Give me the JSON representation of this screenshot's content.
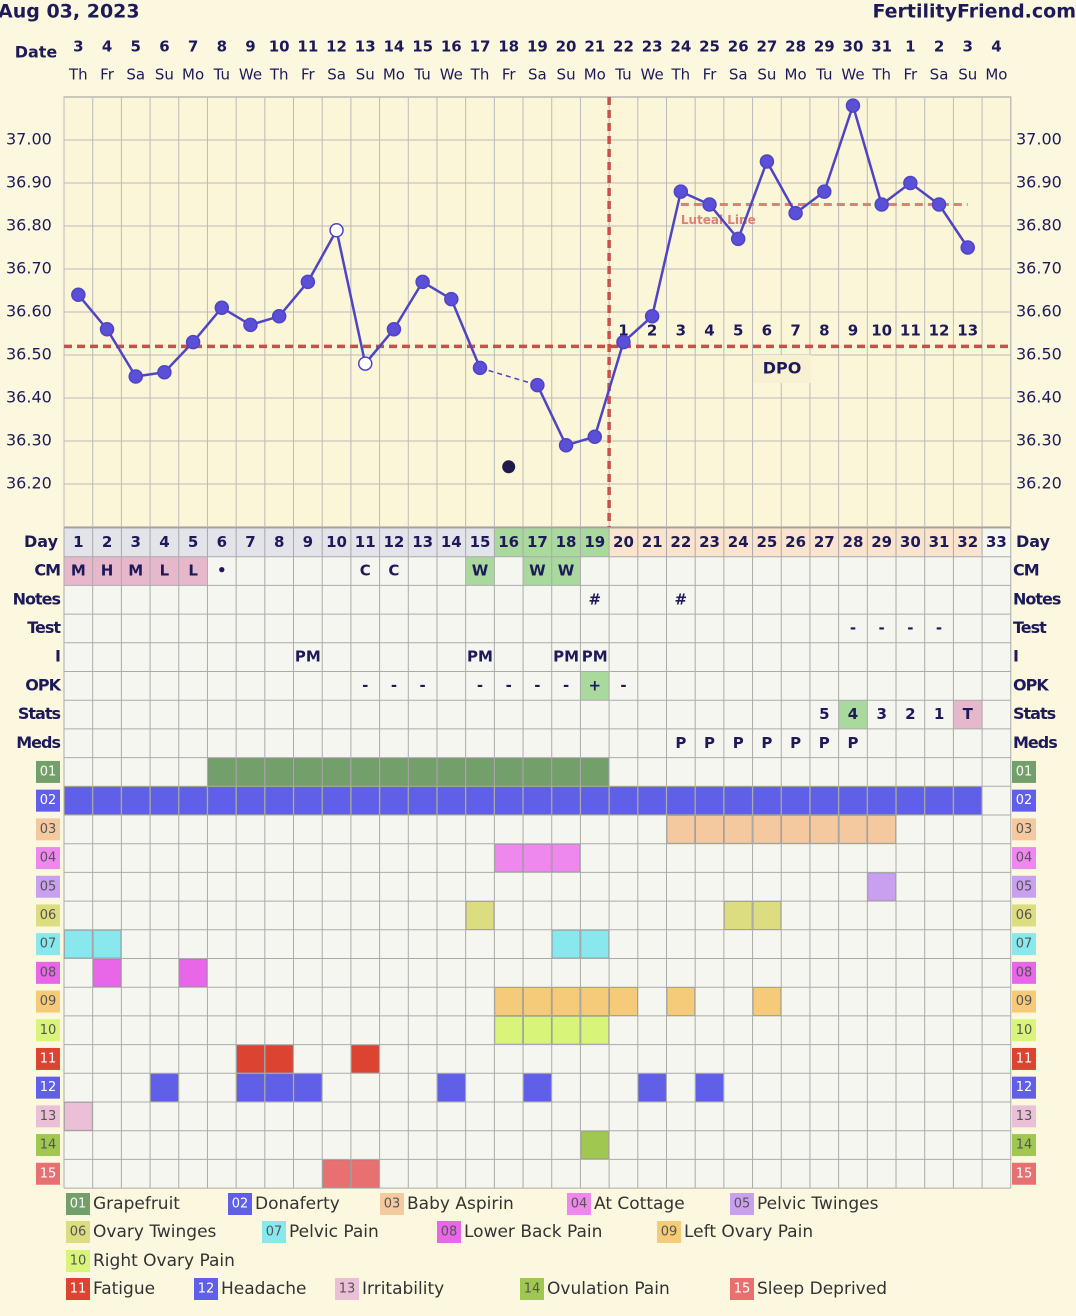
{
  "header": {
    "date": "Aug 03, 2023",
    "site": "FertilityFriend.com"
  },
  "chart_data": {
    "type": "line",
    "date_label": "Date",
    "dates": [
      "3",
      "4",
      "5",
      "6",
      "7",
      "8",
      "9",
      "10",
      "11",
      "12",
      "13",
      "14",
      "15",
      "16",
      "17",
      "18",
      "19",
      "20",
      "21",
      "22",
      "23",
      "24",
      "25",
      "26",
      "27",
      "28",
      "29",
      "30",
      "31",
      "1",
      "2",
      "3",
      "4"
    ],
    "weekdays": [
      "Th",
      "Fr",
      "Sa",
      "Su",
      "Mo",
      "Tu",
      "We",
      "Th",
      "Fr",
      "Sa",
      "Su",
      "Mo",
      "Tu",
      "We",
      "Th",
      "Fr",
      "Sa",
      "Su",
      "Mo",
      "Tu",
      "We",
      "Th",
      "Fr",
      "Sa",
      "Su",
      "Mo",
      "Tu",
      "We",
      "Th",
      "Fr",
      "Sa",
      "Su",
      "Mo"
    ],
    "day_label": "Day",
    "days": [
      1,
      2,
      3,
      4,
      5,
      6,
      7,
      8,
      9,
      10,
      11,
      12,
      13,
      14,
      15,
      16,
      17,
      18,
      19,
      20,
      21,
      22,
      23,
      24,
      25,
      26,
      27,
      28,
      29,
      30,
      31,
      32,
      33
    ],
    "values": [
      36.64,
      36.56,
      36.45,
      36.46,
      36.53,
      36.61,
      36.57,
      36.59,
      36.67,
      36.79,
      36.48,
      36.56,
      36.67,
      36.63,
      36.47,
      null,
      36.43,
      36.29,
      36.31,
      36.53,
      36.59,
      36.88,
      36.85,
      36.77,
      36.95,
      36.83,
      36.88,
      37.08,
      36.85,
      36.9,
      36.85,
      36.75,
      null
    ],
    "color": "#4f45c4",
    "hollow_days": [
      10,
      11
    ],
    "discarded": [
      null,
      null,
      null,
      null,
      null,
      null,
      null,
      null,
      null,
      null,
      null,
      null,
      null,
      null,
      null,
      36.24,
      null,
      null,
      null,
      null,
      null,
      null,
      null,
      null,
      null,
      null,
      null,
      null,
      null,
      null,
      null,
      null,
      null
    ],
    "ylim": [
      36.1,
      37.1
    ],
    "yticks": [
      {
        "value": 36.2,
        "label": "36.20"
      },
      {
        "value": 36.3,
        "label": "36.30"
      },
      {
        "value": 36.4,
        "label": "36.40"
      },
      {
        "value": 36.5,
        "label": "36.50"
      },
      {
        "value": 36.6,
        "label": "36.60"
      },
      {
        "value": 36.7,
        "label": "36.70"
      },
      {
        "value": 36.8,
        "label": "36.80"
      },
      {
        "value": 36.9,
        "label": "36.90"
      },
      {
        "value": 37,
        "label": "37.00"
      }
    ],
    "grid": true,
    "coverline": 36.52,
    "ovulation_day": 19,
    "luteal_line": {
      "label": "Luteal Line",
      "value": 36.85,
      "days": [
        22,
        32
      ]
    },
    "dpo_label": "DPO",
    "dpo": [
      null,
      null,
      null,
      null,
      null,
      null,
      null,
      null,
      null,
      null,
      null,
      null,
      null,
      null,
      null,
      null,
      null,
      null,
      null,
      1,
      2,
      3,
      4,
      5,
      6,
      7,
      8,
      9,
      10,
      11,
      12,
      13,
      null
    ],
    "phases": [
      {
        "from": 1,
        "to": 15,
        "color": "#e3e3ea"
      },
      {
        "from": 16,
        "to": 19,
        "color": "#a9d99c"
      },
      {
        "from": 20,
        "to": 32,
        "color": "#fbe4cd"
      }
    ]
  },
  "rows": [
    {
      "label": "CM",
      "cells": [
        {
          "day": 1,
          "text": "M",
          "color": "#e7b8cc"
        },
        {
          "day": 2,
          "text": "H",
          "color": "#e7b8cc"
        },
        {
          "day": 3,
          "text": "M",
          "color": "#e7b8cc"
        },
        {
          "day": 4,
          "text": "L",
          "color": "#e7b8cc"
        },
        {
          "day": 5,
          "text": "L",
          "color": "#e7b8cc"
        },
        {
          "day": 6,
          "text": "•"
        },
        {
          "day": 11,
          "text": "C"
        },
        {
          "day": 12,
          "text": "C"
        },
        {
          "day": 15,
          "text": "W",
          "color": "#a9d99c"
        },
        {
          "day": 17,
          "text": "W",
          "color": "#a9d99c"
        },
        {
          "day": 18,
          "text": "W",
          "color": "#a9d99c"
        }
      ]
    },
    {
      "label": "Notes",
      "cells": [
        {
          "day": 19,
          "text": "#"
        },
        {
          "day": 22,
          "text": "#"
        }
      ]
    },
    {
      "label": "Test",
      "cells": [
        {
          "day": 28,
          "text": "-"
        },
        {
          "day": 29,
          "text": "-"
        },
        {
          "day": 30,
          "text": "-"
        },
        {
          "day": 31,
          "text": "-"
        }
      ]
    },
    {
      "label": "I",
      "cells": [
        {
          "day": 9,
          "text": "PM"
        },
        {
          "day": 15,
          "text": "PM"
        },
        {
          "day": 18,
          "text": "PM"
        },
        {
          "day": 19,
          "text": "PM"
        }
      ]
    },
    {
      "label": "OPK",
      "cells": [
        {
          "day": 11,
          "text": "-"
        },
        {
          "day": 12,
          "text": "-"
        },
        {
          "day": 13,
          "text": "-"
        },
        {
          "day": 15,
          "text": "-"
        },
        {
          "day": 16,
          "text": "-"
        },
        {
          "day": 17,
          "text": "-"
        },
        {
          "day": 18,
          "text": "-"
        },
        {
          "day": 19,
          "text": "+",
          "color": "#a9d99c"
        },
        {
          "day": 20,
          "text": "-"
        }
      ]
    },
    {
      "label": "Stats",
      "cells": [
        {
          "day": 27,
          "text": "5"
        },
        {
          "day": 28,
          "text": "4",
          "color": "#a9d99c"
        },
        {
          "day": 29,
          "text": "3"
        },
        {
          "day": 30,
          "text": "2"
        },
        {
          "day": 31,
          "text": "1"
        },
        {
          "day": 32,
          "text": "T",
          "color": "#e7b8cc"
        }
      ]
    },
    {
      "label": "Meds",
      "cells": [
        {
          "day": 22,
          "text": "P"
        },
        {
          "day": 23,
          "text": "P"
        },
        {
          "day": 24,
          "text": "P"
        },
        {
          "day": 25,
          "text": "P"
        },
        {
          "day": 26,
          "text": "P"
        },
        {
          "day": 27,
          "text": "P"
        },
        {
          "day": 28,
          "text": "P"
        }
      ]
    }
  ],
  "symptoms": [
    {
      "code": "01",
      "name": "Grapefruit",
      "color": "#739f6b",
      "days": [
        6,
        7,
        8,
        9,
        10,
        11,
        12,
        13,
        14,
        15,
        16,
        17,
        18,
        19
      ]
    },
    {
      "code": "02",
      "name": "Donaferty",
      "color": "#5f5fe8",
      "days": [
        1,
        2,
        3,
        4,
        5,
        6,
        7,
        8,
        9,
        10,
        11,
        12,
        13,
        14,
        15,
        16,
        17,
        18,
        19,
        20,
        21,
        22,
        23,
        24,
        25,
        26,
        27,
        28,
        29,
        30,
        31,
        32
      ]
    },
    {
      "code": "03",
      "name": "Baby Aspirin",
      "color": "#f5c9a0",
      "days": [
        22,
        23,
        24,
        25,
        26,
        27,
        28,
        29
      ]
    },
    {
      "code": "04",
      "name": "At Cottage",
      "color": "#ee88ee",
      "days": [
        16,
        17,
        18
      ]
    },
    {
      "code": "05",
      "name": "Pelvic Twinges",
      "color": "#c9a0f0",
      "days": [
        29
      ]
    },
    {
      "code": "06",
      "name": "Ovary Twinges",
      "color": "#dcdc80",
      "days": [
        15,
        24,
        25
      ]
    },
    {
      "code": "07",
      "name": "Pelvic Pain",
      "color": "#88e8ee",
      "days": [
        1,
        2,
        18,
        19
      ]
    },
    {
      "code": "08",
      "name": "Lower Back Pain",
      "color": "#e866e8",
      "days": [
        2,
        5
      ]
    },
    {
      "code": "09",
      "name": "Left Ovary Pain",
      "color": "#f5cb7a",
      "days": [
        16,
        17,
        18,
        19,
        20,
        22,
        25
      ]
    },
    {
      "code": "10",
      "name": "Right Ovary Pain",
      "color": "#d8f57a",
      "days": [
        16,
        17,
        18,
        19
      ]
    },
    {
      "code": "11",
      "name": "Fatigue",
      "color": "#dc4431",
      "days": [
        7,
        8,
        11
      ]
    },
    {
      "code": "12",
      "name": "Headache",
      "color": "#5f5fe8",
      "days": [
        4,
        7,
        8,
        9,
        14,
        17,
        21,
        23
      ]
    },
    {
      "code": "13",
      "name": "Irritability",
      "color": "#ebc0d6",
      "days": [
        1
      ]
    },
    {
      "code": "14",
      "name": "Ovulation Pain",
      "color": "#a0c850",
      "days": [
        19
      ]
    },
    {
      "code": "15",
      "name": "Sleep Deprived",
      "color": "#e87070",
      "days": [
        10,
        11
      ]
    }
  ]
}
